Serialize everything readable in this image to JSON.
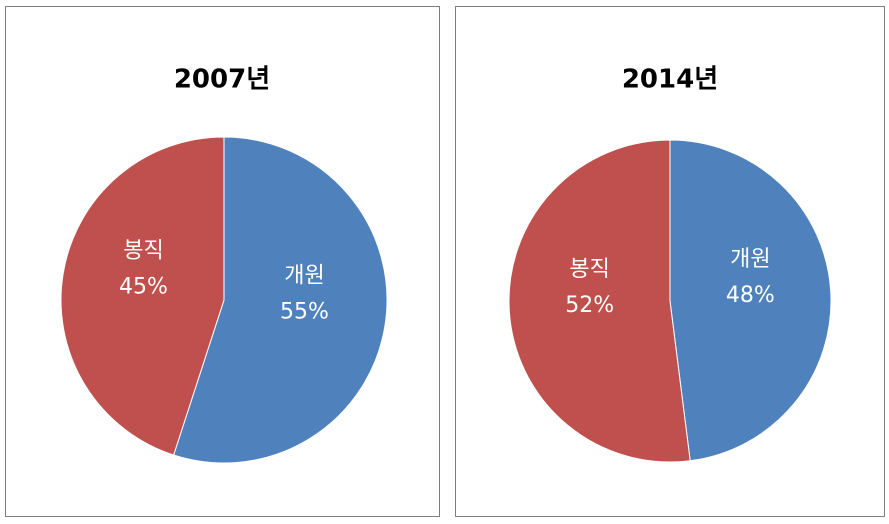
{
  "chart_data": [
    {
      "type": "pie",
      "title": "2007년",
      "categories": [
        "개원",
        "봉직"
      ],
      "values": [
        55,
        45
      ],
      "value_labels": [
        "55%",
        "45%"
      ],
      "colors": [
        "#4f81bd",
        "#c0504d"
      ]
    },
    {
      "type": "pie",
      "title": "2014년",
      "categories": [
        "개원",
        "봉직"
      ],
      "values": [
        48,
        52
      ],
      "value_labels": [
        "48%",
        "52%"
      ],
      "colors": [
        "#4f81bd",
        "#c0504d"
      ]
    }
  ]
}
